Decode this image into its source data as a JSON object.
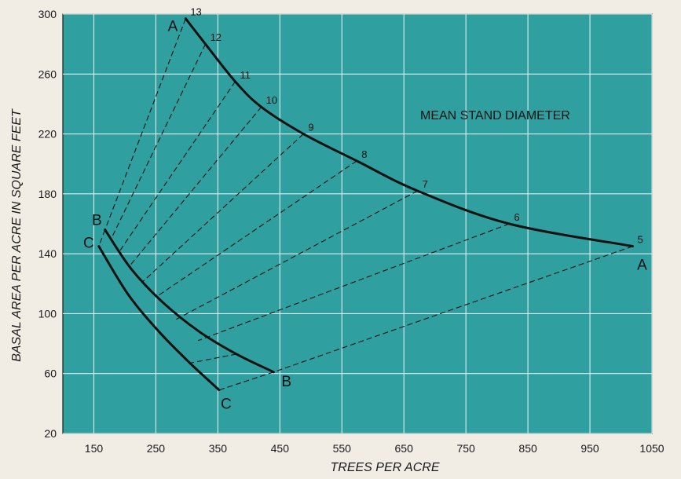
{
  "chart_data": {
    "type": "line",
    "title": "",
    "xlabel": "TREES PER ACRE",
    "ylabel": "BASAL AREA PER ACRE IN SQUARE FEET",
    "xlim": [
      100,
      1050
    ],
    "ylim": [
      20,
      300
    ],
    "x_ticks": [
      150,
      250,
      350,
      450,
      550,
      650,
      750,
      850,
      950,
      1050
    ],
    "y_ticks": [
      20,
      60,
      100,
      140,
      180,
      220,
      260,
      300
    ],
    "grid": true,
    "annotation": "MEAN STAND DIAMETER",
    "colors": {
      "background": "#2f9fa0",
      "grid": "#dcefee",
      "ink": "#111111",
      "page": "#f1ece4"
    },
    "series": [
      {
        "name": "A",
        "style": "solid",
        "points": [
          {
            "diameter": "13",
            "x": 298,
            "y": 297
          },
          {
            "diameter": "12",
            "x": 330,
            "y": 280
          },
          {
            "diameter": "11",
            "x": 378,
            "y": 255
          },
          {
            "diameter": "10",
            "x": 420,
            "y": 238
          },
          {
            "diameter": "9",
            "x": 488,
            "y": 220
          },
          {
            "diameter": "8",
            "x": 574,
            "y": 202
          },
          {
            "diameter": "7",
            "x": 672,
            "y": 182
          },
          {
            "diameter": "6",
            "x": 820,
            "y": 160
          },
          {
            "diameter": "5",
            "x": 1019,
            "y": 145
          }
        ]
      },
      {
        "name": "B",
        "style": "solid",
        "points": [
          {
            "x": 168,
            "y": 156
          },
          {
            "x": 210,
            "y": 130
          },
          {
            "x": 260,
            "y": 108
          },
          {
            "x": 320,
            "y": 88
          },
          {
            "x": 380,
            "y": 73
          },
          {
            "x": 440,
            "y": 61
          }
        ]
      },
      {
        "name": "C",
        "style": "solid",
        "points": [
          {
            "x": 158,
            "y": 145
          },
          {
            "x": 205,
            "y": 113
          },
          {
            "x": 255,
            "y": 88
          },
          {
            "x": 305,
            "y": 67
          },
          {
            "x": 352,
            "y": 49
          }
        ]
      }
    ],
    "guide_lines": [
      {
        "diameter": "13",
        "from": [
          298,
          297
        ],
        "to": [
          168,
          156
        ],
        "style": "dashed"
      },
      {
        "diameter": "12",
        "from": [
          330,
          280
        ],
        "to": [
          178,
          150
        ],
        "style": "dashed"
      },
      {
        "diameter": "11",
        "from": [
          378,
          255
        ],
        "to": [
          192,
          142
        ],
        "style": "dashed"
      },
      {
        "diameter": "10",
        "from": [
          420,
          238
        ],
        "to": [
          208,
          132
        ],
        "style": "dashed"
      },
      {
        "diameter": "9",
        "from": [
          488,
          220
        ],
        "to": [
          228,
          121
        ],
        "style": "dashed"
      },
      {
        "diameter": "8",
        "from": [
          574,
          202
        ],
        "to": [
          250,
          111
        ],
        "style": "dashed"
      },
      {
        "diameter": "7",
        "from": [
          672,
          182
        ],
        "to": [
          282,
          96
        ],
        "style": "dashed"
      },
      {
        "diameter": "6",
        "from": [
          820,
          160
        ],
        "to": [
          318,
          82
        ],
        "style": "dashed"
      },
      {
        "diameter": "5",
        "from": [
          1019,
          145
        ],
        "to": [
          440,
          61
        ],
        "style": "dashed"
      },
      {
        "from": [
          440,
          61
        ],
        "to": [
          352,
          49
        ],
        "style": "dashed"
      },
      {
        "from": [
          168,
          156
        ],
        "to": [
          158,
          145
        ],
        "style": "dashed"
      },
      {
        "from": [
          380,
          73
        ],
        "to": [
          305,
          67
        ],
        "style": "dashed"
      }
    ]
  }
}
